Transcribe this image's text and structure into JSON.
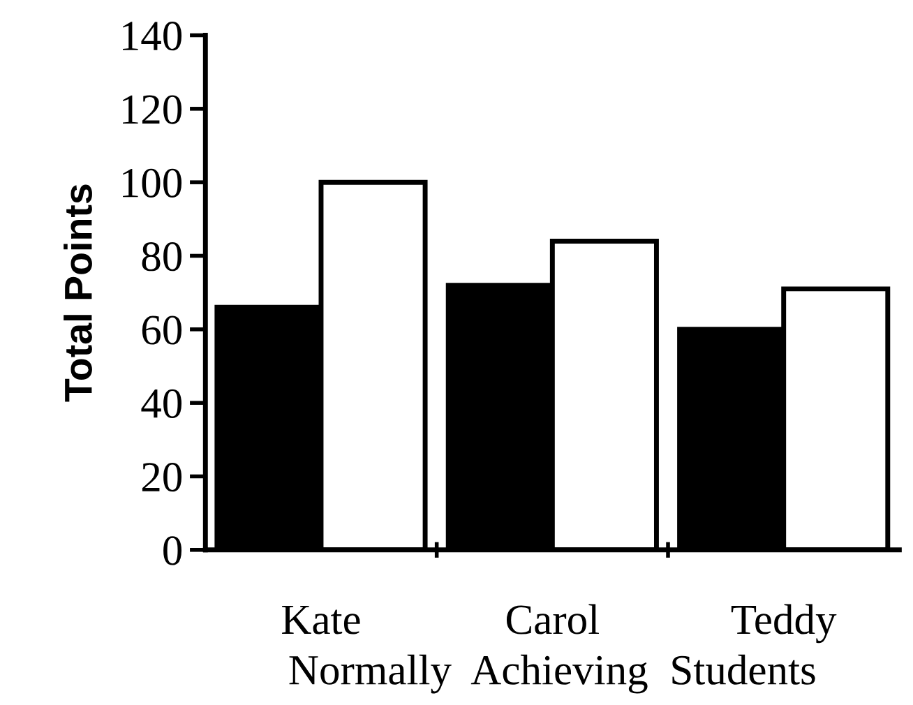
{
  "chart_data": {
    "type": "bar",
    "xlabel": "Normally  Achieving  Students",
    "ylabel": "Total Points",
    "categories": [
      "Kate",
      "Carol",
      "Teddy"
    ],
    "series": [
      {
        "color": "#000000",
        "values": [
          66,
          72,
          60
        ]
      },
      {
        "color": "#ffffff",
        "values": [
          100,
          84,
          71
        ]
      }
    ],
    "ylim": [
      0,
      140
    ],
    "yticks": [
      0,
      20,
      40,
      60,
      80,
      100,
      120,
      140
    ]
  }
}
